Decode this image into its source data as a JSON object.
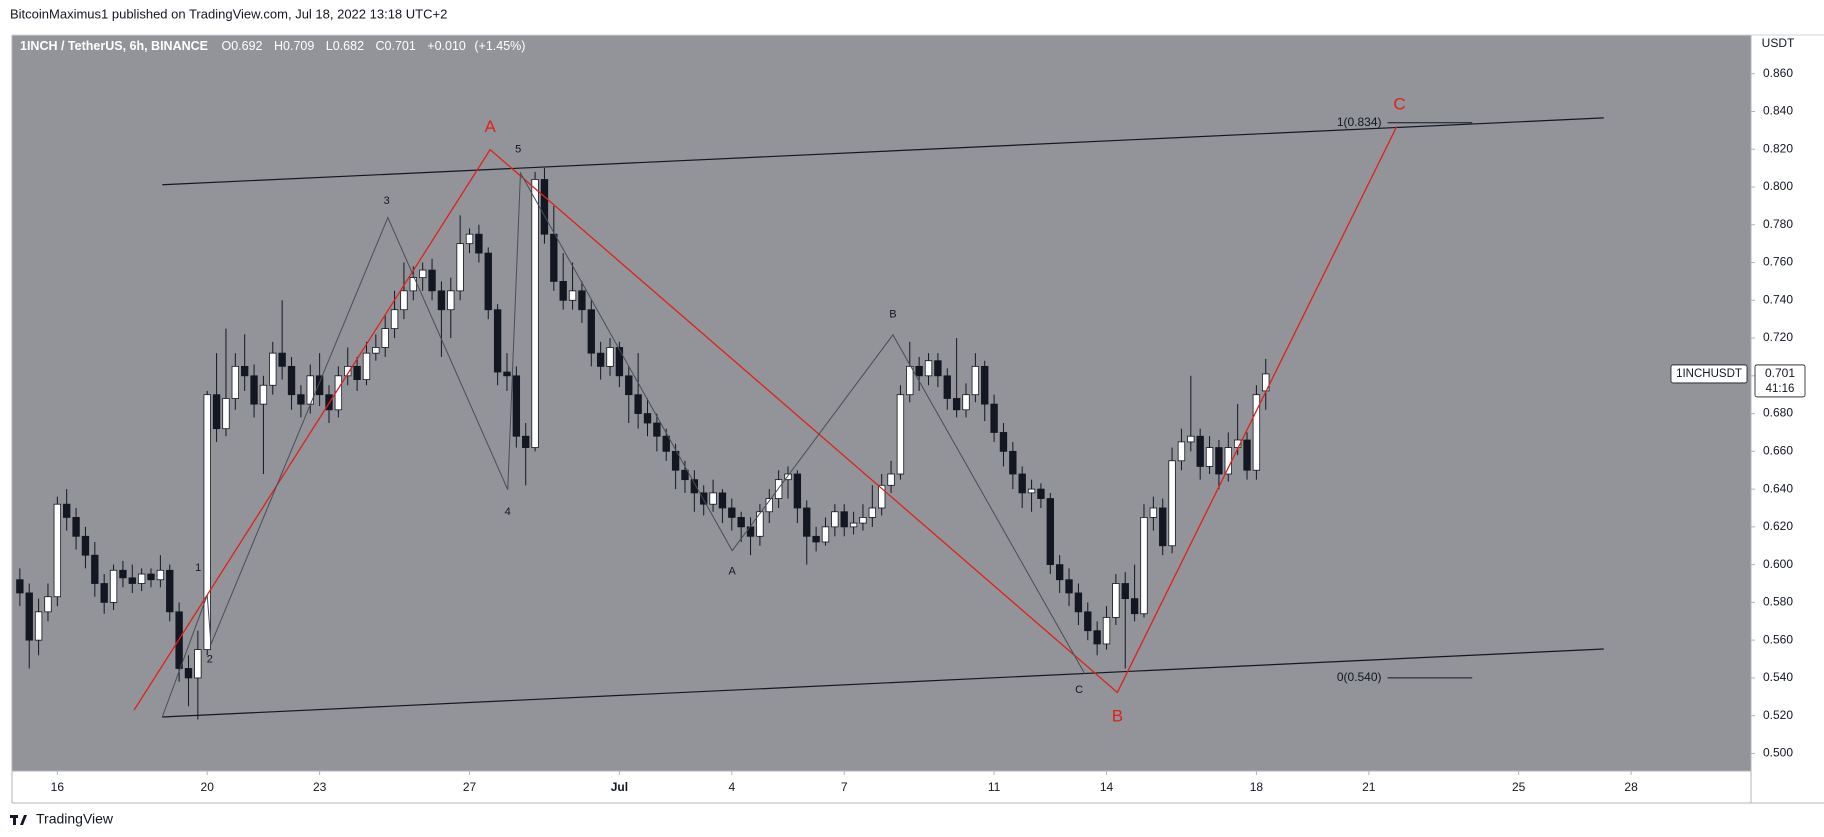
{
  "header": {
    "publisher": "BitcoinMaximus1 published on TradingView.com, Jul 18, 2022 13:18 UTC+2"
  },
  "footer": {
    "brand": "TradingView"
  },
  "chart_data": {
    "type": "candlestick",
    "title": "1INCH / TetherUS, 6h, BINANCE",
    "ohlc_legend": [
      {
        "key": "O",
        "value": 0.692
      },
      {
        "key": "H",
        "value": 0.709
      },
      {
        "key": "L",
        "value": 0.682
      },
      {
        "key": "C",
        "value": 0.701
      }
    ],
    "change": "+0.010",
    "change_pct": "(+1.45%)",
    "y_axis_unit": "USDT",
    "x": [
      15,
      15.25,
      15.5,
      15.75,
      16,
      16.25,
      16.5,
      16.75,
      17,
      17.25,
      17.5,
      17.75,
      18,
      18.25,
      18.5,
      18.75,
      19,
      19.25,
      19.5,
      19.75,
      20,
      20.25,
      20.5,
      20.75,
      21,
      21.25,
      21.5,
      21.75,
      22,
      22.25,
      22.5,
      22.75,
      23,
      23.25,
      23.5,
      23.75,
      24,
      24.25,
      24.5,
      24.75,
      25,
      25.25,
      25.5,
      25.75,
      26,
      26.25,
      26.5,
      26.75,
      27,
      27.25,
      27.5,
      27.75,
      28,
      28.25,
      28.5,
      28.75,
      29,
      29.25,
      29.5,
      29.75,
      30,
      30.25,
      30.5,
      30.75,
      31,
      31.25,
      31.5,
      31.75,
      32,
      32.25,
      32.5,
      32.75,
      33,
      33.25,
      33.5,
      33.75,
      34,
      34.25,
      34.5,
      34.75,
      35,
      35.25,
      35.5,
      35.75,
      36,
      36.25,
      36.5,
      36.75,
      37,
      37.25,
      37.5,
      37.75,
      38,
      38.25,
      38.5,
      38.75,
      39,
      39.25,
      39.5,
      39.75,
      40,
      40.25,
      40.5,
      40.75,
      41,
      41.25,
      41.5,
      41.75,
      42,
      42.25,
      42.5,
      42.75,
      43,
      43.25,
      43.5,
      43.75,
      44,
      44.25,
      44.5,
      44.75,
      45,
      45.25,
      45.5,
      45.75,
      46,
      46.25,
      46.5,
      46.75,
      47,
      47.25,
      47.5,
      47.75,
      48,
      48.25
    ],
    "open": [
      0.592,
      0.585,
      0.56,
      0.575,
      0.583,
      0.632,
      0.625,
      0.615,
      0.605,
      0.59,
      0.58,
      0.597,
      0.593,
      0.59,
      0.595,
      0.592,
      0.597,
      0.575,
      0.545,
      0.54,
      0.555,
      0.69,
      0.672,
      0.688,
      0.705,
      0.7,
      0.685,
      0.695,
      0.712,
      0.705,
      0.69,
      0.685,
      0.7,
      0.69,
      0.682,
      0.7,
      0.705,
      0.698,
      0.712,
      0.715,
      0.725,
      0.735,
      0.745,
      0.752,
      0.756,
      0.745,
      0.735,
      0.745,
      0.77,
      0.775,
      0.765,
      0.735,
      0.702,
      0.7,
      0.668,
      0.662,
      0.804,
      0.775,
      0.75,
      0.74,
      0.745,
      0.735,
      0.712,
      0.705,
      0.715,
      0.7,
      0.69,
      0.68,
      0.675,
      0.668,
      0.66,
      0.65,
      0.645,
      0.638,
      0.632,
      0.638,
      0.63,
      0.625,
      0.62,
      0.615,
      0.628,
      0.635,
      0.645,
      0.648,
      0.63,
      0.615,
      0.612,
      0.62,
      0.628,
      0.62,
      0.622,
      0.625,
      0.63,
      0.642,
      0.648,
      0.69,
      0.705,
      0.7,
      0.708,
      0.7,
      0.688,
      0.682,
      0.69,
      0.705,
      0.685,
      0.67,
      0.66,
      0.648,
      0.638,
      0.64,
      0.635,
      0.6,
      0.592,
      0.585,
      0.575,
      0.565,
      0.558,
      0.572,
      0.59,
      0.582,
      0.574,
      0.625,
      0.63,
      0.61,
      0.655,
      0.665,
      0.668,
      0.652,
      0.662,
      0.648,
      0.662,
      0.666,
      0.65,
      0.692
    ],
    "high": [
      0.598,
      0.59,
      0.582,
      0.59,
      0.636,
      0.64,
      0.63,
      0.62,
      0.612,
      0.595,
      0.6,
      0.602,
      0.6,
      0.598,
      0.598,
      0.605,
      0.6,
      0.58,
      0.552,
      0.565,
      0.692,
      0.712,
      0.725,
      0.712,
      0.722,
      0.706,
      0.7,
      0.718,
      0.74,
      0.71,
      0.695,
      0.706,
      0.712,
      0.695,
      0.705,
      0.715,
      0.71,
      0.718,
      0.722,
      0.732,
      0.745,
      0.76,
      0.758,
      0.76,
      0.762,
      0.75,
      0.752,
      0.785,
      0.778,
      0.78,
      0.768,
      0.738,
      0.712,
      0.705,
      0.675,
      0.808,
      0.81,
      0.79,
      0.765,
      0.76,
      0.75,
      0.74,
      0.718,
      0.72,
      0.718,
      0.705,
      0.712,
      0.688,
      0.68,
      0.672,
      0.664,
      0.655,
      0.65,
      0.642,
      0.645,
      0.64,
      0.635,
      0.628,
      0.625,
      0.632,
      0.64,
      0.65,
      0.652,
      0.65,
      0.634,
      0.62,
      0.625,
      0.632,
      0.632,
      0.628,
      0.632,
      0.642,
      0.648,
      0.655,
      0.695,
      0.718,
      0.71,
      0.712,
      0.712,
      0.704,
      0.72,
      0.696,
      0.712,
      0.708,
      0.69,
      0.675,
      0.665,
      0.652,
      0.645,
      0.643,
      0.638,
      0.605,
      0.598,
      0.59,
      0.58,
      0.57,
      0.578,
      0.595,
      0.596,
      0.6,
      0.632,
      0.636,
      0.635,
      0.662,
      0.672,
      0.7,
      0.672,
      0.668,
      0.666,
      0.67,
      0.685,
      0.67,
      0.695,
      0.709
    ],
    "low": [
      0.578,
      0.545,
      0.552,
      0.57,
      0.578,
      0.618,
      0.608,
      0.598,
      0.583,
      0.574,
      0.576,
      0.588,
      0.585,
      0.586,
      0.588,
      0.588,
      0.57,
      0.538,
      0.525,
      0.518,
      0.552,
      0.665,
      0.668,
      0.682,
      0.692,
      0.678,
      0.648,
      0.69,
      0.698,
      0.682,
      0.678,
      0.68,
      0.684,
      0.675,
      0.678,
      0.695,
      0.692,
      0.695,
      0.708,
      0.71,
      0.72,
      0.73,
      0.74,
      0.745,
      0.74,
      0.71,
      0.72,
      0.74,
      0.765,
      0.76,
      0.73,
      0.695,
      0.692,
      0.662,
      0.642,
      0.66,
      0.77,
      0.745,
      0.735,
      0.735,
      0.728,
      0.705,
      0.698,
      0.7,
      0.694,
      0.675,
      0.672,
      0.668,
      0.66,
      0.655,
      0.64,
      0.638,
      0.628,
      0.626,
      0.628,
      0.622,
      0.618,
      0.612,
      0.605,
      0.61,
      0.622,
      0.63,
      0.635,
      0.622,
      0.6,
      0.607,
      0.61,
      0.615,
      0.615,
      0.616,
      0.618,
      0.62,
      0.626,
      0.638,
      0.645,
      0.686,
      0.692,
      0.695,
      0.694,
      0.682,
      0.678,
      0.678,
      0.686,
      0.676,
      0.665,
      0.652,
      0.64,
      0.63,
      0.628,
      0.63,
      0.595,
      0.585,
      0.578,
      0.568,
      0.56,
      0.552,
      0.555,
      0.568,
      0.545,
      0.57,
      0.572,
      0.618,
      0.605,
      0.606,
      0.65,
      0.66,
      0.645,
      0.648,
      0.64,
      0.644,
      0.658,
      0.645,
      0.645,
      0.682
    ],
    "close": [
      0.585,
      0.56,
      0.575,
      0.583,
      0.632,
      0.625,
      0.615,
      0.605,
      0.59,
      0.58,
      0.597,
      0.593,
      0.59,
      0.595,
      0.592,
      0.597,
      0.575,
      0.545,
      0.54,
      0.555,
      0.69,
      0.672,
      0.688,
      0.705,
      0.7,
      0.685,
      0.695,
      0.712,
      0.705,
      0.69,
      0.685,
      0.7,
      0.69,
      0.682,
      0.7,
      0.705,
      0.698,
      0.712,
      0.715,
      0.725,
      0.735,
      0.745,
      0.752,
      0.756,
      0.745,
      0.735,
      0.745,
      0.77,
      0.775,
      0.765,
      0.735,
      0.702,
      0.7,
      0.668,
      0.662,
      0.804,
      0.775,
      0.75,
      0.74,
      0.745,
      0.735,
      0.712,
      0.705,
      0.715,
      0.7,
      0.69,
      0.68,
      0.675,
      0.668,
      0.66,
      0.65,
      0.645,
      0.638,
      0.632,
      0.638,
      0.63,
      0.625,
      0.62,
      0.615,
      0.628,
      0.635,
      0.645,
      0.648,
      0.63,
      0.615,
      0.612,
      0.62,
      0.628,
      0.62,
      0.622,
      0.625,
      0.63,
      0.642,
      0.648,
      0.69,
      0.705,
      0.7,
      0.708,
      0.7,
      0.688,
      0.682,
      0.69,
      0.705,
      0.685,
      0.67,
      0.66,
      0.648,
      0.638,
      0.64,
      0.635,
      0.6,
      0.592,
      0.585,
      0.575,
      0.565,
      0.558,
      0.572,
      0.59,
      0.582,
      0.574,
      0.625,
      0.63,
      0.61,
      0.655,
      0.665,
      0.668,
      0.652,
      0.662,
      0.648,
      0.662,
      0.666,
      0.65,
      0.69,
      0.701
    ],
    "up_color": "#ffffff",
    "down_color": "#131722",
    "wick_color": "#131722",
    "xlim": [
      14.79,
      61.2
    ],
    "xticks": [
      16,
      20,
      23,
      27,
      {
        "value": 31,
        "label": "Jul"
      },
      {
        "value": 34,
        "label": "4"
      },
      {
        "value": 37,
        "label": "7"
      },
      {
        "value": 41,
        "label": "11"
      },
      {
        "value": 44,
        "label": "14"
      },
      {
        "value": 48,
        "label": "18"
      },
      {
        "value": 51,
        "label": "21"
      },
      {
        "value": 55,
        "label": "25"
      },
      {
        "value": 58,
        "label": "28"
      }
    ],
    "ylim": [
      0.4907,
      0.8805
    ],
    "yticks": [
      {
        "value": 0.5,
        "label": "0.500"
      },
      {
        "value": 0.52,
        "label": "0.520"
      },
      {
        "value": 0.54,
        "label": "0.540"
      },
      {
        "value": 0.56,
        "label": "0.560"
      },
      {
        "value": 0.58,
        "label": "0.580"
      },
      {
        "value": 0.6,
        "label": "0.600"
      },
      {
        "value": 0.62,
        "label": "0.620"
      },
      {
        "value": 0.64,
        "label": "0.640"
      },
      {
        "value": 0.66,
        "label": "0.660"
      },
      {
        "value": 0.68,
        "label": "0.680"
      },
      {
        "value": 0.7,
        "label": "0.700"
      },
      {
        "value": 0.72,
        "label": "0.720"
      },
      {
        "value": 0.74,
        "label": "0.740"
      },
      {
        "value": 0.76,
        "label": "0.760"
      },
      {
        "value": 0.78,
        "label": "0.780"
      },
      {
        "value": 0.8,
        "label": "0.800"
      },
      {
        "value": 0.82,
        "label": "0.820"
      },
      {
        "value": 0.84,
        "label": "0.840"
      },
      {
        "value": 0.86,
        "label": "0.860"
      }
    ],
    "grid": false,
    "background": "#929499",
    "last_price": {
      "symbol": "1INCHUSDT",
      "value": 0.701,
      "countdown": "41:16"
    },
    "trendlines": [
      {
        "color": "#131722",
        "width": 1.2,
        "points": [
          [
            18.8,
            0.8012
          ],
          [
            57.27,
            0.8366
          ]
        ]
      },
      {
        "color": "#131722",
        "width": 1.2,
        "points": [
          [
            18.8,
            0.5193
          ],
          [
            57.27,
            0.5553
          ]
        ]
      },
      {
        "color": "#e0201e",
        "width": 1.3,
        "points": [
          [
            18.05,
            0.523
          ],
          [
            27.55,
            0.8198
          ],
          [
            44.29,
            0.5323
          ],
          [
            51.75,
            0.8322
          ]
        ]
      },
      {
        "color": "#4a4d57",
        "width": 1,
        "points": [
          [
            18.8,
            0.5193
          ],
          [
            20.0,
            0.5838
          ],
          [
            20.1,
            0.5578
          ],
          [
            24.82,
            0.7838
          ],
          [
            28.02,
            0.6397
          ],
          [
            28.36,
            0.8074
          ],
          [
            34.01,
            0.6074
          ],
          [
            38.3,
            0.7217
          ],
          [
            43.42,
            0.5422
          ]
        ]
      }
    ],
    "fib_levels": [
      {
        "label": "1(0.834)",
        "value": 0.834,
        "x": [
          51.5,
          53.76
        ]
      },
      {
        "label": "0(0.540)",
        "value": 0.54,
        "x": [
          51.5,
          53.76
        ]
      }
    ],
    "wave_labels": [
      {
        "text": "1",
        "x": 19.76,
        "y": 0.5981,
        "color": "#131722",
        "size": 11
      },
      {
        "text": "2",
        "x": 20.07,
        "y": 0.5497,
        "color": "#131722",
        "size": 11
      },
      {
        "text": "3",
        "x": 24.79,
        "y": 0.7925,
        "color": "#131722",
        "size": 11
      },
      {
        "text": "4",
        "x": 28.02,
        "y": 0.6279,
        "color": "#131722",
        "size": 11
      },
      {
        "text": "5",
        "x": 28.3,
        "y": 0.8198,
        "color": "#131722",
        "size": 11
      },
      {
        "text": "A",
        "x": 34.01,
        "y": 0.5963,
        "color": "#131722",
        "size": 11
      },
      {
        "text": "B",
        "x": 38.3,
        "y": 0.7323,
        "color": "#131722",
        "size": 11
      },
      {
        "text": "C",
        "x": 43.27,
        "y": 0.5335,
        "color": "#131722",
        "size": 11
      },
      {
        "text": "A",
        "x": 27.55,
        "y": 0.8316,
        "color": "#e0201e",
        "size": 17
      },
      {
        "text": "B",
        "x": 44.29,
        "y": 0.5193,
        "color": "#e0201e",
        "size": 17
      },
      {
        "text": "C",
        "x": 51.82,
        "y": 0.8434,
        "color": "#e0201e",
        "size": 17
      }
    ]
  }
}
